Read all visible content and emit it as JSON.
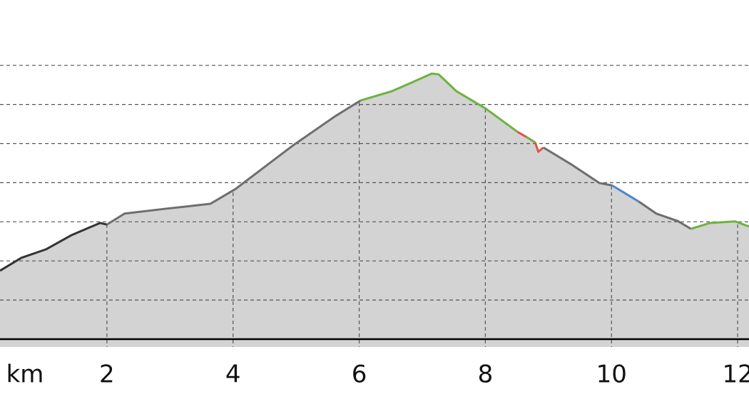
{
  "chart_data": {
    "type": "area",
    "xlabel": "km",
    "x": [
      0.305,
      0.645,
      1.04,
      1.44,
      1.89,
      2.0,
      2.28,
      2.91,
      3.64,
      4.04,
      4.94,
      5.62,
      6.02,
      6.52,
      6.86,
      7.15,
      7.26,
      7.54,
      8.0,
      8.51,
      8.65,
      8.79,
      8.84,
      8.92,
      9.35,
      9.81,
      10.01,
      10.43,
      10.71,
      11.05,
      11.26,
      11.56,
      11.96,
      12.18
    ],
    "values": [
      1.75,
      2.08,
      2.3,
      2.66,
      2.97,
      2.93,
      3.21,
      3.33,
      3.46,
      3.84,
      4.94,
      5.7,
      6.1,
      6.34,
      6.58,
      6.79,
      6.77,
      6.34,
      5.9,
      5.3,
      5.17,
      5.03,
      4.79,
      4.9,
      4.48,
      3.99,
      3.93,
      3.52,
      3.21,
      3.02,
      2.82,
      2.97,
      3.01,
      2.88
    ],
    "area_color": "#d3d3d3",
    "series": [
      {
        "color": "#333333",
        "values": [
          1.75,
          2.08,
          2.3,
          2.66,
          2.97,
          2.93,
          null,
          null,
          null,
          null,
          null,
          null,
          null,
          null,
          null,
          null,
          null,
          null,
          null,
          null,
          null,
          null,
          null,
          null,
          null,
          null,
          null,
          null,
          null,
          null,
          null,
          null,
          null,
          null
        ]
      },
      {
        "color": "#6e6e6e",
        "values": [
          null,
          null,
          null,
          null,
          null,
          2.93,
          3.21,
          3.33,
          3.46,
          3.84,
          4.94,
          5.7,
          6.1,
          null,
          null,
          null,
          null,
          null,
          null,
          null,
          null,
          null,
          null,
          null,
          null,
          null,
          null,
          null,
          null,
          null,
          null,
          null,
          null,
          null
        ]
      },
      {
        "color": "#6cb33e",
        "values": [
          null,
          null,
          null,
          null,
          null,
          null,
          null,
          null,
          null,
          null,
          null,
          null,
          6.1,
          6.34,
          6.58,
          6.79,
          6.77,
          6.34,
          5.9,
          5.3,
          null,
          null,
          null,
          null,
          null,
          null,
          null,
          null,
          null,
          null,
          null,
          null,
          null,
          null
        ]
      },
      {
        "color": "#e0534a",
        "values": [
          null,
          null,
          null,
          null,
          null,
          null,
          null,
          null,
          null,
          null,
          null,
          null,
          null,
          null,
          null,
          null,
          null,
          null,
          null,
          5.3,
          5.17,
          null,
          null,
          null,
          null,
          null,
          null,
          null,
          null,
          null,
          null,
          null,
          null,
          null
        ]
      },
      {
        "color": "#6cb33e",
        "values": [
          null,
          null,
          null,
          null,
          null,
          null,
          null,
          null,
          null,
          null,
          null,
          null,
          null,
          null,
          null,
          null,
          null,
          null,
          null,
          null,
          5.17,
          5.03,
          null,
          null,
          null,
          null,
          null,
          null,
          null,
          null,
          null,
          null,
          null,
          null
        ]
      },
      {
        "color": "#e0534a",
        "values": [
          null,
          null,
          null,
          null,
          null,
          null,
          null,
          null,
          null,
          null,
          null,
          null,
          null,
          null,
          null,
          null,
          null,
          null,
          null,
          null,
          null,
          5.03,
          4.79,
          4.9,
          null,
          null,
          null,
          null,
          null,
          null,
          null,
          null,
          null,
          null
        ]
      },
      {
        "color": "#6e6e6e",
        "values": [
          null,
          null,
          null,
          null,
          null,
          null,
          null,
          null,
          null,
          null,
          null,
          null,
          null,
          null,
          null,
          null,
          null,
          null,
          null,
          null,
          null,
          null,
          null,
          4.9,
          4.48,
          3.99,
          3.93,
          null,
          null,
          null,
          null,
          null,
          null,
          null
        ]
      },
      {
        "color": "#4f86d0",
        "values": [
          null,
          null,
          null,
          null,
          null,
          null,
          null,
          null,
          null,
          null,
          null,
          null,
          null,
          null,
          null,
          null,
          null,
          null,
          null,
          null,
          null,
          null,
          null,
          null,
          null,
          null,
          3.93,
          3.52,
          null,
          null,
          null,
          null,
          null,
          null
        ]
      },
      {
        "color": "#6e6e6e",
        "values": [
          null,
          null,
          null,
          null,
          null,
          null,
          null,
          null,
          null,
          null,
          null,
          null,
          null,
          null,
          null,
          null,
          null,
          null,
          null,
          null,
          null,
          null,
          null,
          null,
          null,
          null,
          null,
          3.52,
          3.21,
          3.02,
          2.82,
          null,
          null,
          null
        ]
      },
      {
        "color": "#6cb33e",
        "values": [
          null,
          null,
          null,
          null,
          null,
          null,
          null,
          null,
          null,
          null,
          null,
          null,
          null,
          null,
          null,
          null,
          null,
          null,
          null,
          null,
          null,
          null,
          null,
          null,
          null,
          null,
          null,
          null,
          null,
          null,
          2.82,
          2.97,
          3.01,
          2.88
        ]
      }
    ],
    "xlim": [
      0.305,
      12.18
    ],
    "ylim": [
      -0.2,
      8.67
    ],
    "xticks": [
      2,
      4,
      6,
      8,
      10,
      12
    ],
    "ygrid": [
      0,
      1,
      2,
      3,
      4,
      5,
      6,
      7
    ],
    "grid": true
  }
}
